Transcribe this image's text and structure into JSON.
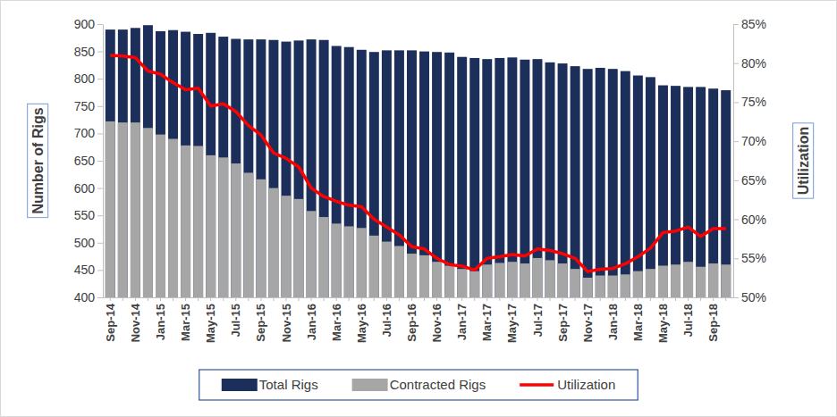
{
  "chart_data": {
    "type": "bar",
    "y_label": "Number of Rigs",
    "y2_label": "Utilization",
    "categories": [
      "Sep-14",
      null,
      "Nov-14",
      null,
      "Jan-15",
      null,
      "Mar-15",
      null,
      "May-15",
      null,
      "Jul-15",
      null,
      "Sep-15",
      null,
      "Nov-15",
      null,
      "Jan-16",
      null,
      "Mar-16",
      null,
      "May-16",
      null,
      "Jul-16",
      null,
      "Sep-16",
      null,
      "Nov-16",
      null,
      "Jan-17",
      null,
      "Mar-17",
      null,
      "May-17",
      null,
      "Jul-17",
      null,
      "Sep-17",
      null,
      "Nov-17",
      null,
      "Jan-18",
      null,
      "Mar-18",
      null,
      "May-18",
      null,
      "Jul-18",
      null,
      "Sep-18",
      null
    ],
    "series": [
      {
        "name": "Total Rigs",
        "type": "bar",
        "color": "#1c2f5a",
        "values": [
          890,
          890,
          893,
          898,
          887,
          889,
          886,
          882,
          884,
          877,
          873,
          872,
          872,
          871,
          868,
          870,
          872,
          871,
          860,
          858,
          853,
          849,
          852,
          852,
          852,
          850,
          849,
          848,
          840,
          838,
          836,
          838,
          839,
          835,
          836,
          830,
          828,
          823,
          818,
          820,
          818,
          814,
          806,
          803,
          788,
          787,
          785,
          785,
          782,
          779
        ]
      },
      {
        "name": "Contracted Rigs",
        "type": "bar",
        "color": "#a6a6a6",
        "values": [
          722,
          720,
          720,
          710,
          698,
          690,
          678,
          677,
          660,
          656,
          645,
          628,
          616,
          600,
          586,
          580,
          558,
          547,
          535,
          530,
          527,
          513,
          502,
          494,
          480,
          477,
          465,
          458,
          452,
          448,
          460,
          463,
          465,
          462,
          472,
          468,
          462,
          452,
          436,
          440,
          440,
          442,
          448,
          452,
          458,
          460,
          465,
          456,
          462,
          460
        ]
      },
      {
        "name": "Utilization",
        "type": "line",
        "axis": "y2",
        "color": "#ff0000",
        "values": [
          81.0,
          80.9,
          80.7,
          79.0,
          78.6,
          77.5,
          76.6,
          76.8,
          74.5,
          74.8,
          73.8,
          72.0,
          70.8,
          68.5,
          67.8,
          66.7,
          64.0,
          62.9,
          62.3,
          61.8,
          61.6,
          60.0,
          59.0,
          58.0,
          56.5,
          56.2,
          55.0,
          54.2,
          54.0,
          53.5,
          55.0,
          55.2,
          55.5,
          55.3,
          56.2,
          56.0,
          55.6,
          55.0,
          53.3,
          53.6,
          53.7,
          54.3,
          55.2,
          56.3,
          58.3,
          58.5,
          59.0,
          57.8,
          58.8,
          58.8
        ]
      }
    ],
    "ylim": [
      400,
      900
    ],
    "yticks": [
      400,
      450,
      500,
      550,
      600,
      650,
      700,
      750,
      800,
      850,
      900
    ],
    "y2lim": [
      50,
      85
    ],
    "y2ticks": [
      {
        "value": 50,
        "label": "50%"
      },
      {
        "value": 55,
        "label": "55%"
      },
      {
        "value": 60,
        "label": "60%"
      },
      {
        "value": 65,
        "label": "65%"
      },
      {
        "value": 70,
        "label": "70%"
      },
      {
        "value": 75,
        "label": "75%"
      },
      {
        "value": 80,
        "label": "80%"
      },
      {
        "value": 85,
        "label": "85%"
      }
    ],
    "stacked": false,
    "grid": false,
    "legend": "bottom"
  }
}
